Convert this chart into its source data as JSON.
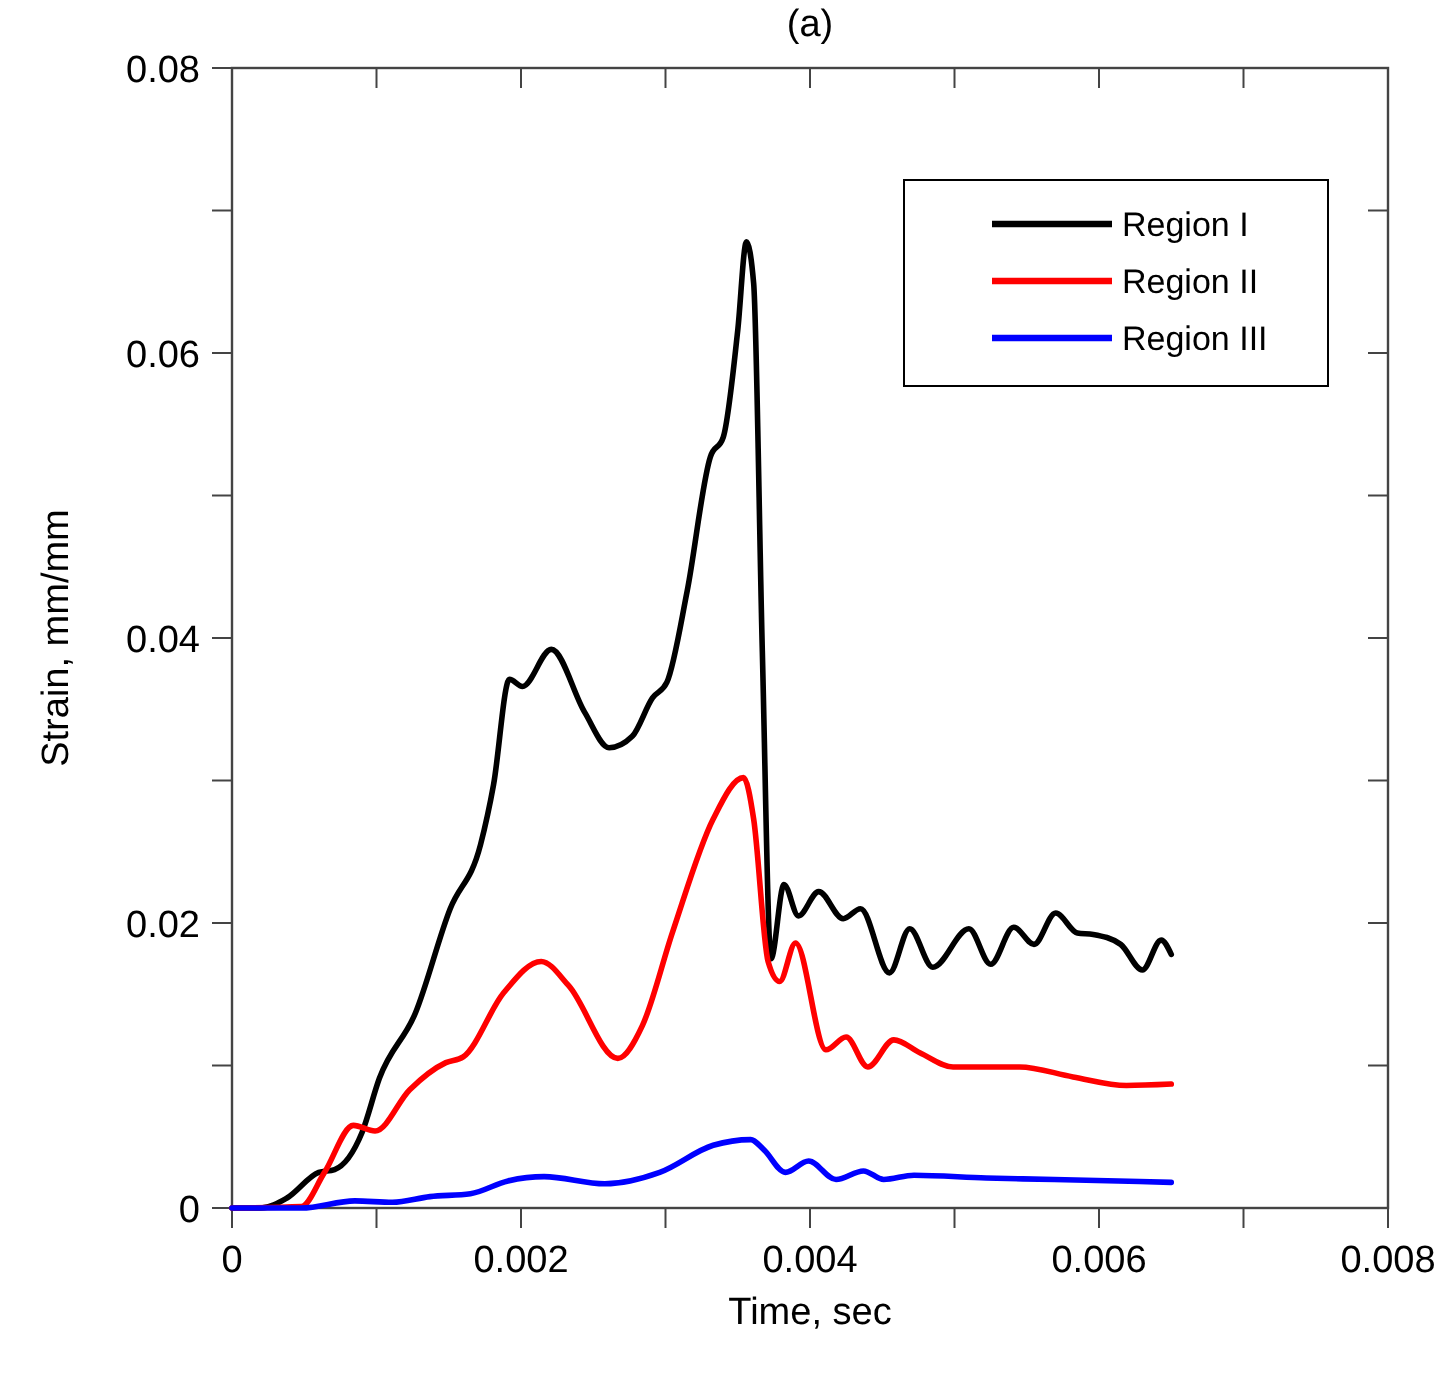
{
  "chart_data": {
    "type": "line",
    "title": "(a)",
    "xlabel": "Time, sec",
    "ylabel": "Strain, mm/mm",
    "xlim": [
      0,
      0.008
    ],
    "ylim": [
      0,
      0.08
    ],
    "xticks": [
      0,
      {
        "value": 0.001,
        "label": null
      },
      0.002,
      {
        "value": 0.003,
        "label": null
      },
      0.004,
      {
        "value": 0.005,
        "label": null
      },
      0.006,
      {
        "value": 0.007,
        "label": null
      },
      0.008
    ],
    "yticks": [
      0,
      {
        "value": 0.01,
        "label": null
      },
      0.02,
      {
        "value": 0.03,
        "label": null
      },
      0.04,
      {
        "value": 0.05,
        "label": null
      },
      0.06,
      {
        "value": 0.07,
        "label": null
      },
      0.08
    ],
    "grid": false,
    "legend": "top right",
    "marker": "none",
    "line_style": "solid",
    "series": [
      {
        "name": "Region I",
        "color": "#000000",
        "x": [
          0,
          0.0002,
          0.00038,
          0.0006,
          0.00071,
          0.0009,
          0.00102,
          0.00127,
          0.00151,
          0.00172,
          0.00181,
          0.00192,
          0.00201,
          0.00221,
          0.00244,
          0.00261,
          0.00277,
          0.00291,
          0.00301,
          0.00315,
          0.00331,
          0.0034,
          0.0035,
          0.00356,
          0.00361,
          0.00367,
          0.00373,
          0.00382,
          0.00392,
          0.00406,
          0.00423,
          0.00435,
          0.00455,
          0.00469,
          0.00485,
          0.0051,
          0.00525,
          0.00541,
          0.00555,
          0.0057,
          0.00585,
          0.00596,
          0.00615,
          0.0063,
          0.00643,
          0.0065
        ],
        "values": [
          0,
          0,
          0.0007,
          0.0025,
          0.0027,
          0.0053,
          0.0091,
          0.0137,
          0.021,
          0.0255,
          0.0297,
          0.0371,
          0.0366,
          0.0392,
          0.0348,
          0.0323,
          0.0331,
          0.0358,
          0.0369,
          0.0433,
          0.0527,
          0.0541,
          0.0616,
          0.0678,
          0.0649,
          0.0391,
          0.0175,
          0.0227,
          0.0205,
          0.0222,
          0.0203,
          0.021,
          0.0165,
          0.0196,
          0.0169,
          0.0196,
          0.0171,
          0.0197,
          0.0185,
          0.0207,
          0.0193,
          0.0192,
          0.0185,
          0.0167,
          0.0188,
          0.0178
        ]
      },
      {
        "name": "Region II",
        "color": "#ff0000",
        "x": [
          0,
          0.00048,
          0.00064,
          0.00084,
          0.00099,
          0.00123,
          0.00148,
          0.0016,
          0.00188,
          0.00214,
          0.00233,
          0.00267,
          0.00284,
          0.00305,
          0.00333,
          0.00354,
          0.00361,
          0.00371,
          0.00379,
          0.0039,
          0.00411,
          0.00425,
          0.0044,
          0.00458,
          0.00476,
          0.00499,
          0.00545,
          0.00582,
          0.00619,
          0.0065
        ],
        "values": [
          0,
          0.0001,
          0.0025,
          0.0058,
          0.0054,
          0.0083,
          0.0102,
          0.0106,
          0.0151,
          0.0173,
          0.0156,
          0.0105,
          0.0128,
          0.0194,
          0.0273,
          0.0302,
          0.0273,
          0.0173,
          0.0159,
          0.0186,
          0.0111,
          0.012,
          0.0099,
          0.0118,
          0.0109,
          0.0099,
          0.0099,
          0.0092,
          0.0086,
          0.0087
        ]
      },
      {
        "name": "Region III",
        "color": "#0000ff",
        "x": [
          0,
          0.00048,
          0.00085,
          0.00111,
          0.00137,
          0.00165,
          0.00191,
          0.00216,
          0.00258,
          0.00296,
          0.00333,
          0.00359,
          0.00368,
          0.00383,
          0.00399,
          0.00418,
          0.00437,
          0.00451,
          0.00472,
          0.00522,
          0.00569,
          0.0065
        ],
        "values": [
          0,
          0,
          0.0005,
          0.0004,
          0.0008,
          0.001,
          0.0019,
          0.0022,
          0.0017,
          0.0025,
          0.0044,
          0.0048,
          0.0041,
          0.0025,
          0.0033,
          0.002,
          0.0026,
          0.002,
          0.0023,
          0.0021,
          0.002,
          0.0018
        ]
      }
    ]
  }
}
